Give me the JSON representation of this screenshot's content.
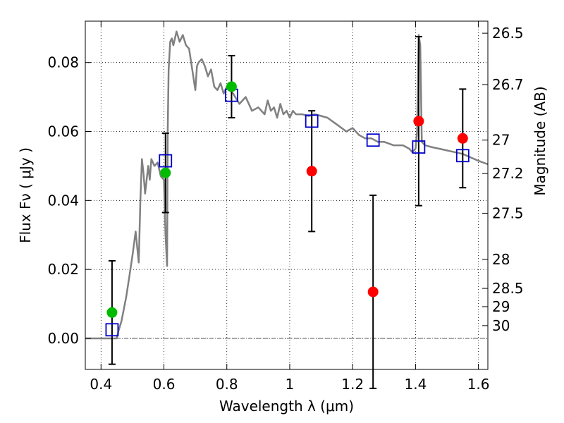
{
  "chart_data": {
    "type": "scatter",
    "xlabel": "Wavelength  λ (μm)",
    "ylabel": "Flux  Fν  ( μJy )",
    "ylabel_right": "Magnitude (AB)",
    "xlim": [
      0.35,
      1.63
    ],
    "ylim": [
      -0.009,
      0.092
    ],
    "grid": true,
    "x_ticks": [
      0.4,
      0.6,
      0.8,
      1.0,
      1.2,
      1.4,
      1.6
    ],
    "x_tick_labels": [
      "0.4",
      "0.6",
      "0.8",
      "1",
      "1.2",
      "1.4",
      "1.6"
    ],
    "y_ticks": [
      0.0,
      0.02,
      0.04,
      0.06,
      0.08
    ],
    "y_tick_labels": [
      "0.00",
      "0.02",
      "0.04",
      "0.06",
      "0.08"
    ],
    "right_ticks": [
      {
        "flux": 0.0885,
        "label": "26.5"
      },
      {
        "flux": 0.0736,
        "label": "26.7"
      },
      {
        "flux": 0.0575,
        "label": "27"
      },
      {
        "flux": 0.0478,
        "label": "27.2"
      },
      {
        "flux": 0.0363,
        "label": "27.5"
      },
      {
        "flux": 0.0229,
        "label": "28"
      },
      {
        "flux": 0.0145,
        "label": "28.5"
      },
      {
        "flux": 0.0092,
        "label": "29"
      },
      {
        "flux": 0.0037,
        "label": "30"
      }
    ],
    "colors": {
      "model": "#808080",
      "model_points": "#0000cc",
      "detections": "#00bb00",
      "nondetections": "#ff0000",
      "errorbars": "#000000"
    },
    "model_curve": {
      "x": [
        0.35,
        0.45,
        0.455,
        0.465,
        0.48,
        0.49,
        0.5,
        0.51,
        0.52,
        0.525,
        0.53,
        0.535,
        0.54,
        0.55,
        0.555,
        0.56,
        0.57,
        0.58,
        0.59,
        0.6,
        0.605,
        0.61,
        0.612,
        0.615,
        0.62,
        0.625,
        0.63,
        0.64,
        0.65,
        0.66,
        0.67,
        0.68,
        0.7,
        0.705,
        0.71,
        0.72,
        0.73,
        0.74,
        0.75,
        0.76,
        0.77,
        0.78,
        0.79,
        0.8,
        0.81,
        0.82,
        0.84,
        0.86,
        0.88,
        0.9,
        0.92,
        0.93,
        0.94,
        0.95,
        0.96,
        0.97,
        0.98,
        0.99,
        1.0,
        1.01,
        1.02,
        1.04,
        1.06,
        1.08,
        1.1,
        1.12,
        1.15,
        1.18,
        1.2,
        1.22,
        1.24,
        1.26,
        1.28,
        1.3,
        1.33,
        1.36,
        1.38,
        1.39,
        1.4,
        1.405,
        1.41,
        1.415,
        1.42,
        1.43,
        1.45,
        1.5,
        1.55,
        1.6,
        1.63
      ],
      "y": [
        0.0,
        0.0,
        0.002,
        0.005,
        0.012,
        0.018,
        0.024,
        0.031,
        0.022,
        0.04,
        0.052,
        0.048,
        0.042,
        0.05,
        0.046,
        0.052,
        0.05,
        0.051,
        0.047,
        0.046,
        0.03,
        0.021,
        0.06,
        0.078,
        0.086,
        0.087,
        0.085,
        0.089,
        0.086,
        0.088,
        0.085,
        0.084,
        0.072,
        0.079,
        0.08,
        0.081,
        0.079,
        0.076,
        0.078,
        0.073,
        0.072,
        0.074,
        0.071,
        0.073,
        0.072,
        0.071,
        0.068,
        0.07,
        0.066,
        0.067,
        0.065,
        0.069,
        0.066,
        0.067,
        0.064,
        0.068,
        0.065,
        0.066,
        0.064,
        0.066,
        0.065,
        0.065,
        0.0645,
        0.065,
        0.0645,
        0.064,
        0.062,
        0.06,
        0.061,
        0.059,
        0.058,
        0.058,
        0.057,
        0.057,
        0.056,
        0.056,
        0.055,
        0.054,
        0.055,
        0.06,
        0.088,
        0.085,
        0.057,
        0.056,
        0.0555,
        0.0545,
        0.0535,
        0.0515,
        0.0505
      ]
    },
    "model_points": {
      "x": [
        0.435,
        0.605,
        0.815,
        1.07,
        1.265,
        1.41,
        1.55
      ],
      "y": [
        0.0025,
        0.0515,
        0.0705,
        0.063,
        0.0575,
        0.0555,
        0.053
      ]
    },
    "detections": {
      "x": [
        0.435,
        0.605,
        0.815
      ],
      "y": [
        0.0075,
        0.048,
        0.073
      ],
      "yerr": [
        0.015,
        0.0115,
        0.009
      ]
    },
    "nondetections": {
      "x": [
        1.07,
        1.265,
        1.41,
        1.55
      ],
      "y": [
        0.0485,
        0.0135,
        0.063,
        0.058
      ],
      "yerr": [
        0.0175,
        0.028,
        0.0245,
        0.0143
      ]
    }
  }
}
